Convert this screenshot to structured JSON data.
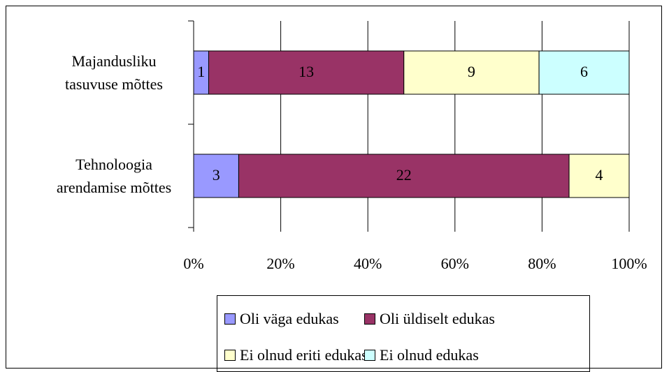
{
  "chart_data": {
    "type": "bar",
    "orientation": "horizontal",
    "stacking": "percent",
    "categories": [
      "Majandusliku tasuvuse mõttes",
      "Tehnoloogia arendamise mõttes"
    ],
    "series": [
      {
        "name": "Oli väga edukas",
        "color": "#9999ff",
        "values": [
          1,
          3
        ]
      },
      {
        "name": "Oli üldiselt edukas",
        "color": "#993366",
        "values": [
          13,
          22
        ]
      },
      {
        "name": "Ei olnud eriti edukas",
        "color": "#ffffcc",
        "values": [
          9,
          4
        ]
      },
      {
        "name": "Ei olnud edukas",
        "color": "#ccffff",
        "values": [
          6,
          null
        ]
      }
    ],
    "xlim": [
      0,
      100
    ],
    "xticks": [
      {
        "value": 0,
        "label": "0%"
      },
      {
        "value": 20,
        "label": "20%"
      },
      {
        "value": 40,
        "label": "40%"
      },
      {
        "value": 60,
        "label": "60%"
      },
      {
        "value": 80,
        "label": "80%"
      },
      {
        "value": 100,
        "label": "100%"
      }
    ],
    "grid": true,
    "legend": "bottom"
  }
}
